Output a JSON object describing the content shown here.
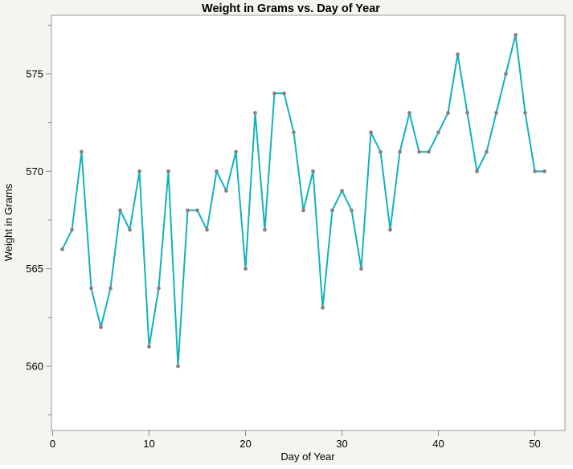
{
  "window": {
    "background": "#f5f4ee"
  },
  "chart_data": {
    "type": "line",
    "title": "Weight in Grams vs. Day of Year",
    "xlabel": "Day of Year",
    "ylabel": "Weight in Grams",
    "x": [
      1,
      2,
      3,
      4,
      5,
      6,
      7,
      8,
      9,
      10,
      11,
      12,
      13,
      14,
      15,
      16,
      17,
      18,
      19,
      20,
      21,
      22,
      23,
      24,
      25,
      26,
      27,
      28,
      29,
      30,
      31,
      32,
      33,
      34,
      35,
      36,
      37,
      38,
      39,
      40,
      41,
      42,
      43,
      44,
      45,
      46,
      47,
      48,
      49,
      50,
      51
    ],
    "values": [
      566,
      567,
      571,
      564,
      562,
      564,
      568,
      567,
      570,
      561,
      564,
      570,
      560,
      568,
      568,
      567,
      570,
      569,
      571,
      565,
      573,
      567,
      574,
      574,
      572,
      568,
      570,
      563,
      568,
      569,
      568,
      565,
      572,
      571,
      567,
      571,
      573,
      571,
      571,
      572,
      573,
      576,
      573,
      570,
      571,
      573,
      575,
      577,
      573,
      570,
      570
    ],
    "xlim": [
      0,
      53
    ],
    "ylim": [
      556.7,
      578
    ],
    "x_ticks": [
      0,
      10,
      20,
      30,
      40,
      50
    ],
    "y_ticks": [
      560,
      565,
      570,
      575
    ],
    "y_minor_ticks": [
      557.5,
      562.5,
      567.5,
      572.5,
      577.5
    ],
    "grid": false,
    "legend_position": "none",
    "colors": {
      "line": "#12b2ba",
      "marker": "#8a8180",
      "plot_background": "#ffffff",
      "page_background": "#f5f4ee",
      "frame": "#9a9a98",
      "tick": "#8e8e8e",
      "text": "#000000"
    }
  }
}
